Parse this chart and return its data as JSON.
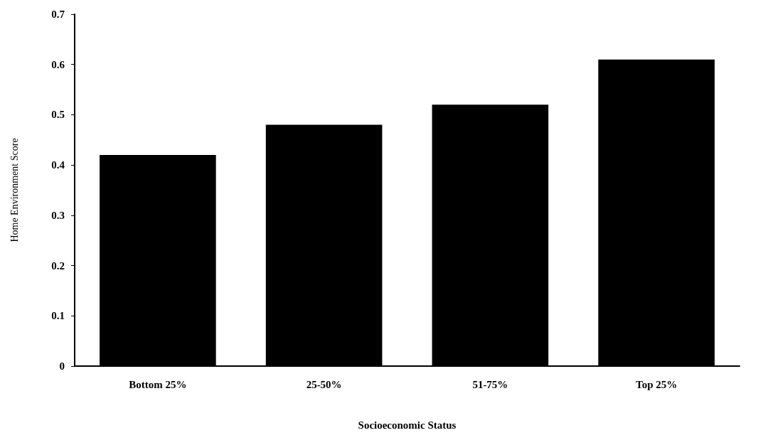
{
  "chart_data": {
    "type": "bar",
    "xlabel": "Socioeconomic Status",
    "ylabel": "Home Environment Score",
    "categories": [
      "Bottom 25%",
      "25-50%",
      "51-75%",
      "Top 25%"
    ],
    "values": [
      0.42,
      0.48,
      0.52,
      0.61
    ],
    "color": "#000000",
    "ylim": [
      0,
      0.7
    ],
    "yticks": [
      0,
      0.1,
      0.2,
      0.3,
      0.4,
      0.5,
      0.6,
      0.7
    ],
    "grid": false
  }
}
